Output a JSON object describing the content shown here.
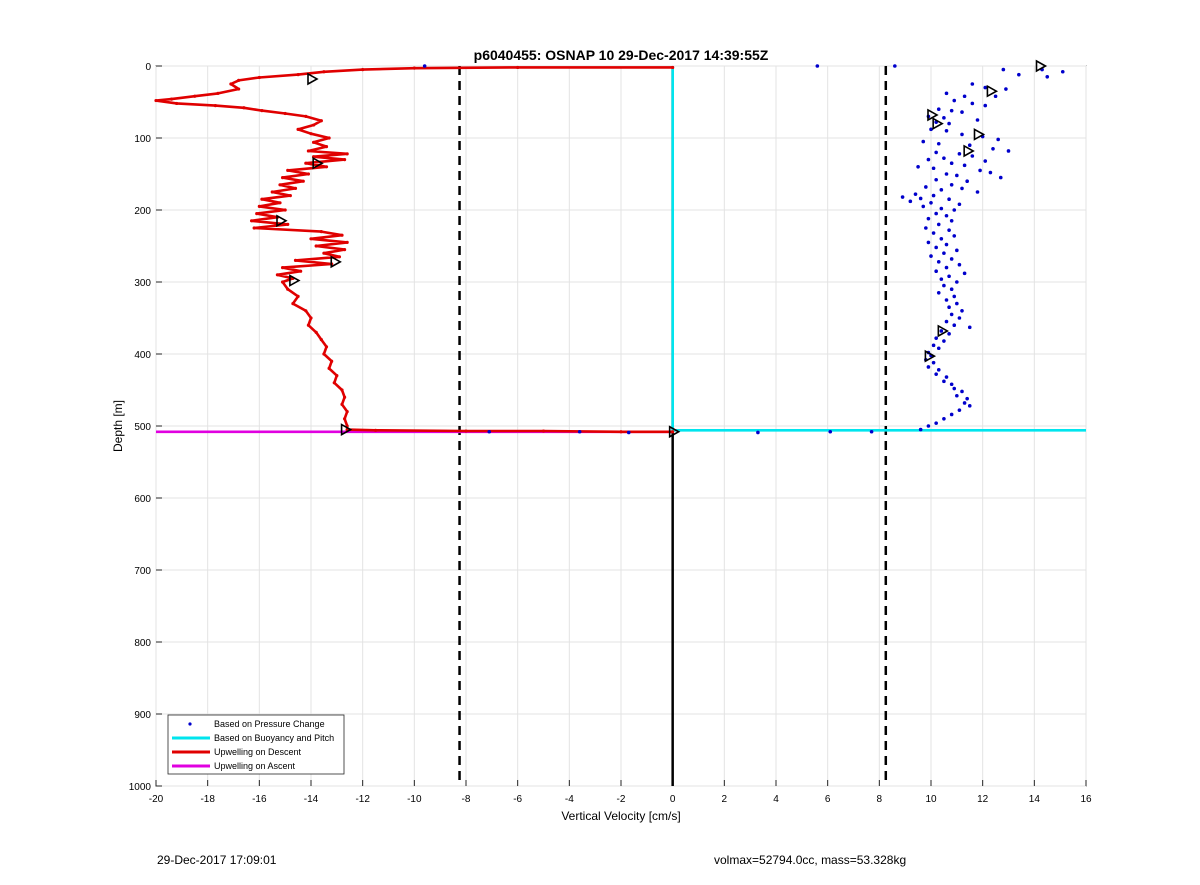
{
  "footer": {
    "timestamp": "29-Dec-2017 17:09:01",
    "volmax_mass": "volmax=52794.0cc, mass=53.328kg"
  },
  "chart_data": {
    "type": "line",
    "title": "p6040455: OSNAP 10 29-Dec-2017 14:39:55Z",
    "xlabel": "Vertical Velocity [cm/s]",
    "ylabel": "Depth [m]",
    "xlim": [
      -20,
      16
    ],
    "ylim": [
      0,
      1000
    ],
    "y_reversed": true,
    "grid": true,
    "xticks": [
      -20,
      -18,
      -16,
      -14,
      -12,
      -10,
      -8,
      -6,
      -4,
      -2,
      0,
      2,
      4,
      6,
      8,
      10,
      12,
      14,
      16
    ],
    "yticks": [
      0,
      100,
      200,
      300,
      400,
      500,
      600,
      700,
      800,
      900,
      1000
    ],
    "legend_position": "bottom-left",
    "colors": {
      "pressure": "#0000cc",
      "buoyancy": "#00e5ee",
      "descent": "#e00000",
      "ascent": "#e000e0",
      "threshold": "#000000"
    },
    "series": [
      {
        "name": "Based on Pressure Change",
        "style": "dots",
        "points": [
          [
            5.6,
            0
          ],
          [
            8.6,
            0
          ],
          [
            12.8,
            5
          ],
          [
            14.3,
            5
          ],
          [
            15.1,
            8
          ],
          [
            13.4,
            12
          ],
          [
            14.5,
            15
          ],
          [
            11.6,
            25
          ],
          [
            12.1,
            30
          ],
          [
            12.9,
            32
          ],
          [
            10.6,
            38
          ],
          [
            11.3,
            42
          ],
          [
            12.5,
            42
          ],
          [
            10.9,
            48
          ],
          [
            11.6,
            52
          ],
          [
            12.1,
            55
          ],
          [
            10.3,
            60
          ],
          [
            10.8,
            62
          ],
          [
            11.2,
            64
          ],
          [
            9.9,
            70
          ],
          [
            10.5,
            72
          ],
          [
            11.8,
            75
          ],
          [
            10.2,
            78
          ],
          [
            10.7,
            80
          ],
          [
            10.0,
            88
          ],
          [
            10.6,
            90
          ],
          [
            11.2,
            95
          ],
          [
            12.0,
            98
          ],
          [
            12.6,
            102
          ],
          [
            9.7,
            105
          ],
          [
            10.3,
            108
          ],
          [
            11.5,
            110
          ],
          [
            12.4,
            115
          ],
          [
            13.0,
            118
          ],
          [
            10.2,
            120
          ],
          [
            11.1,
            122
          ],
          [
            11.6,
            125
          ],
          [
            10.5,
            128
          ],
          [
            9.9,
            130
          ],
          [
            12.1,
            132
          ],
          [
            10.8,
            135
          ],
          [
            11.3,
            138
          ],
          [
            9.5,
            140
          ],
          [
            10.1,
            142
          ],
          [
            11.9,
            145
          ],
          [
            12.3,
            148
          ],
          [
            10.6,
            150
          ],
          [
            11.0,
            152
          ],
          [
            12.7,
            155
          ],
          [
            10.2,
            158
          ],
          [
            11.4,
            160
          ],
          [
            10.8,
            165
          ],
          [
            9.8,
            168
          ],
          [
            11.2,
            170
          ],
          [
            10.4,
            172
          ],
          [
            11.8,
            175
          ],
          [
            9.4,
            178
          ],
          [
            10.1,
            180
          ],
          [
            8.9,
            182
          ],
          [
            9.6,
            184
          ],
          [
            10.7,
            185
          ],
          [
            9.2,
            188
          ],
          [
            10.0,
            190
          ],
          [
            11.1,
            192
          ],
          [
            9.7,
            195
          ],
          [
            10.4,
            198
          ],
          [
            10.9,
            200
          ],
          [
            10.2,
            205
          ],
          [
            10.6,
            208
          ],
          [
            9.9,
            212
          ],
          [
            10.8,
            215
          ],
          [
            10.3,
            220
          ],
          [
            9.8,
            225
          ],
          [
            10.7,
            228
          ],
          [
            10.1,
            232
          ],
          [
            10.9,
            236
          ],
          [
            10.4,
            240
          ],
          [
            9.9,
            245
          ],
          [
            10.6,
            248
          ],
          [
            10.2,
            252
          ],
          [
            11.0,
            256
          ],
          [
            10.5,
            260
          ],
          [
            10.0,
            264
          ],
          [
            10.8,
            268
          ],
          [
            10.3,
            272
          ],
          [
            11.1,
            276
          ],
          [
            10.6,
            280
          ],
          [
            10.2,
            285
          ],
          [
            11.3,
            288
          ],
          [
            10.7,
            292
          ],
          [
            10.4,
            296
          ],
          [
            11.0,
            300
          ],
          [
            10.5,
            305
          ],
          [
            10.8,
            310
          ],
          [
            10.3,
            315
          ],
          [
            10.9,
            320
          ],
          [
            10.6,
            325
          ],
          [
            11.0,
            330
          ],
          [
            10.7,
            335
          ],
          [
            11.2,
            340
          ],
          [
            10.8,
            345
          ],
          [
            11.1,
            350
          ],
          [
            10.6,
            355
          ],
          [
            10.9,
            360
          ],
          [
            11.5,
            363
          ],
          [
            10.4,
            368
          ],
          [
            10.7,
            372
          ],
          [
            10.2,
            378
          ],
          [
            10.5,
            382
          ],
          [
            10.1,
            388
          ],
          [
            10.3,
            392
          ],
          [
            9.9,
            398
          ],
          [
            10.0,
            402
          ],
          [
            9.8,
            408
          ],
          [
            10.1,
            412
          ],
          [
            9.9,
            418
          ],
          [
            10.3,
            422
          ],
          [
            10.2,
            428
          ],
          [
            10.6,
            432
          ],
          [
            10.5,
            438
          ],
          [
            10.8,
            442
          ],
          [
            10.9,
            448
          ],
          [
            11.2,
            452
          ],
          [
            11.0,
            458
          ],
          [
            11.4,
            462
          ],
          [
            11.3,
            468
          ],
          [
            11.5,
            472
          ],
          [
            11.1,
            478
          ],
          [
            10.8,
            484
          ],
          [
            10.5,
            490
          ],
          [
            10.2,
            496
          ],
          [
            9.9,
            500
          ],
          [
            9.6,
            505
          ],
          [
            7.7,
            508
          ],
          [
            6.1,
            508
          ],
          [
            3.3,
            509
          ],
          [
            -3.6,
            508
          ],
          [
            -7.1,
            508
          ],
          [
            -1.7,
            509
          ],
          [
            -9.6,
            0
          ]
        ]
      },
      {
        "name": "Based on Buoyancy and Pitch",
        "style": "line",
        "points": [
          [
            0,
            0
          ],
          [
            0,
            506
          ],
          [
            16,
            506
          ]
        ]
      },
      {
        "name": "Upwelling on Descent",
        "style": "line",
        "points": [
          [
            0,
            2
          ],
          [
            -6,
            2
          ],
          [
            -10,
            3
          ],
          [
            -12,
            5
          ],
          [
            -13.5,
            8
          ],
          [
            -14.5,
            12
          ],
          [
            -16,
            16
          ],
          [
            -16.8,
            20
          ],
          [
            -17.1,
            25
          ],
          [
            -16.8,
            32
          ],
          [
            -17.6,
            38
          ],
          [
            -18.5,
            42
          ],
          [
            -19.4,
            46
          ],
          [
            -20,
            48
          ],
          [
            -19.2,
            52
          ],
          [
            -17.7,
            55
          ],
          [
            -16.6,
            58
          ],
          [
            -15.9,
            62
          ],
          [
            -15.0,
            66
          ],
          [
            -14.2,
            70
          ],
          [
            -13.6,
            76
          ],
          [
            -13.9,
            82
          ],
          [
            -14.5,
            88
          ],
          [
            -14.0,
            94
          ],
          [
            -13.3,
            100
          ],
          [
            -13.9,
            106
          ],
          [
            -13.4,
            112
          ],
          [
            -14.1,
            118
          ],
          [
            -12.6,
            122
          ],
          [
            -13.9,
            126
          ],
          [
            -12.7,
            130
          ],
          [
            -14.2,
            135
          ],
          [
            -13.4,
            140
          ],
          [
            -14.9,
            145
          ],
          [
            -14.1,
            150
          ],
          [
            -15.1,
            155
          ],
          [
            -14.3,
            160
          ],
          [
            -15.2,
            165
          ],
          [
            -14.6,
            170
          ],
          [
            -15.5,
            175
          ],
          [
            -14.8,
            180
          ],
          [
            -15.9,
            185
          ],
          [
            -15.2,
            190
          ],
          [
            -16.0,
            195
          ],
          [
            -15.0,
            200
          ],
          [
            -16.1,
            205
          ],
          [
            -15.3,
            210
          ],
          [
            -16.3,
            215
          ],
          [
            -14.9,
            220
          ],
          [
            -16.2,
            225
          ],
          [
            -13.6,
            230
          ],
          [
            -12.8,
            235
          ],
          [
            -14.0,
            240
          ],
          [
            -12.6,
            245
          ],
          [
            -13.8,
            250
          ],
          [
            -12.7,
            255
          ],
          [
            -13.5,
            260
          ],
          [
            -12.9,
            265
          ],
          [
            -14.6,
            270
          ],
          [
            -13.2,
            275
          ],
          [
            -15.1,
            280
          ],
          [
            -14.4,
            285
          ],
          [
            -15.3,
            290
          ],
          [
            -14.7,
            295
          ],
          [
            -15.1,
            300
          ],
          [
            -14.9,
            310
          ],
          [
            -14.5,
            320
          ],
          [
            -14.7,
            330
          ],
          [
            -14.2,
            340
          ],
          [
            -14.0,
            350
          ],
          [
            -14.1,
            360
          ],
          [
            -13.8,
            370
          ],
          [
            -13.6,
            380
          ],
          [
            -13.4,
            390
          ],
          [
            -13.5,
            400
          ],
          [
            -13.2,
            410
          ],
          [
            -13.3,
            420
          ],
          [
            -13.0,
            430
          ],
          [
            -13.1,
            440
          ],
          [
            -12.8,
            450
          ],
          [
            -12.7,
            460
          ],
          [
            -12.8,
            470
          ],
          [
            -12.6,
            480
          ],
          [
            -12.7,
            490
          ],
          [
            -12.6,
            500
          ],
          [
            -12.6,
            505
          ],
          [
            -11.5,
            506
          ],
          [
            -8,
            507
          ],
          [
            -5,
            507
          ],
          [
            -2,
            508
          ],
          [
            0,
            508
          ]
        ]
      },
      {
        "name": "Upwelling on Ascent",
        "style": "line",
        "points": [
          [
            -20,
            508
          ],
          [
            0,
            508
          ]
        ]
      }
    ],
    "markers": [
      [
        -14.0,
        18
      ],
      [
        -13.8,
        135
      ],
      [
        -15.2,
        215
      ],
      [
        -13.1,
        272
      ],
      [
        -14.7,
        298
      ],
      [
        -12.7,
        505
      ],
      [
        0,
        508
      ],
      [
        14.2,
        0
      ],
      [
        12.3,
        35
      ],
      [
        10.0,
        68
      ],
      [
        10.2,
        80
      ],
      [
        11.8,
        95
      ],
      [
        11.4,
        118
      ],
      [
        10.4,
        368
      ],
      [
        9.9,
        403
      ]
    ],
    "vertical_lines": [
      -8.25,
      0,
      8.25
    ]
  }
}
